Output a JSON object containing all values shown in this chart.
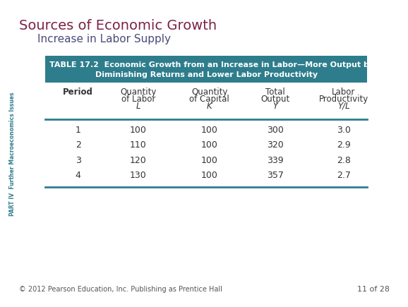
{
  "title": "Sources of Economic Growth",
  "subtitle": "Increase in Labor Supply",
  "title_color": "#7B2346",
  "subtitle_color": "#4A4A7A",
  "table_header_bg": "#2E7D8C",
  "table_header_text": "#FFFFFF",
  "table_header_line1": "TABLE 17.2  Economic Growth from an Increase in Labor—More Output but",
  "table_header_line2": "Diminishing Returns and Lower Labor Productivity",
  "col_headers": [
    "Period",
    "Quantity\nof Labor\nL",
    "Quantity\nof Capital\nK",
    "Total\nOutput\nY",
    "Labor\nProductivity\nY/L"
  ],
  "italic_last_lines": [
    "L",
    "K",
    "Y",
    "Y/L"
  ],
  "rows": [
    [
      "1",
      "100",
      "100",
      "300",
      "3.0"
    ],
    [
      "2",
      "110",
      "100",
      "320",
      "2.9"
    ],
    [
      "3",
      "120",
      "100",
      "339",
      "2.8"
    ],
    [
      "4",
      "130",
      "100",
      "357",
      "2.7"
    ]
  ],
  "footer_left": "© 2012 Pearson Education, Inc. Publishing as Prentice Hall",
  "footer_right": "11 of 28",
  "side_text": "PART IV  Further Macroeconomics Issues",
  "bg_color": "#FFFFFF",
  "line_color": "#2E7D8C",
  "text_color": "#333333",
  "footer_color": "#555555",
  "side_text_color": "#2E7D8C"
}
